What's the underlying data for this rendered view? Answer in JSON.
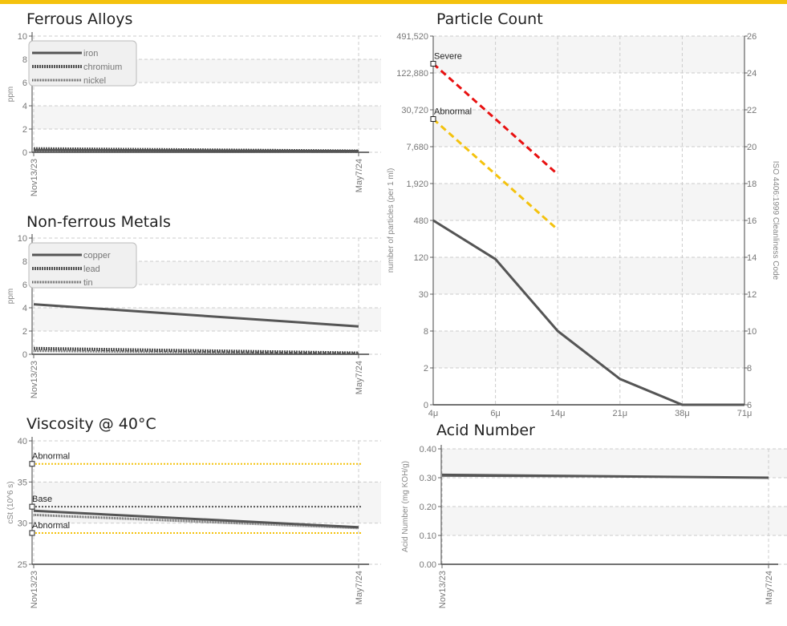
{
  "colors": {
    "accent": "#f4c20d",
    "series": "#555555",
    "severe": "#e81010",
    "abnormal": "#f4c20d",
    "base": "#555555",
    "band": "#f5f5f5",
    "grid": "#cccccc"
  },
  "titles": {
    "ferrous": "Ferrous Alloys",
    "nonferrous": "Non-ferrous Metals",
    "viscosity": "Viscosity @ 40°C",
    "particle": "Particle Count",
    "acid": "Acid Number"
  },
  "chart_data": [
    {
      "id": "ferrous",
      "type": "line",
      "ylabel": "ppm",
      "ylim": [
        0,
        10
      ],
      "yticks": [
        "0",
        "2",
        "4",
        "6",
        "8",
        "10"
      ],
      "categories": [
        "Nov13/23",
        "May7/24"
      ],
      "legend": "top-left",
      "grid": true,
      "series": [
        {
          "name": "iron",
          "style": "solid",
          "values": [
            0.2,
            0.1
          ]
        },
        {
          "name": "chromium",
          "style": "dense",
          "values": [
            0.3,
            0.1
          ]
        },
        {
          "name": "nickel",
          "style": "dotted",
          "values": [
            0.15,
            0.05
          ]
        }
      ]
    },
    {
      "id": "nonferrous",
      "type": "line",
      "ylabel": "ppm",
      "ylim": [
        0,
        10
      ],
      "yticks": [
        "0",
        "2",
        "4",
        "6",
        "8",
        "10"
      ],
      "categories": [
        "Nov13/23",
        "May7/24"
      ],
      "legend": "top-left",
      "grid": true,
      "series": [
        {
          "name": "copper",
          "style": "solid",
          "values": [
            4.3,
            2.4
          ]
        },
        {
          "name": "lead",
          "style": "dense",
          "values": [
            0.5,
            0.1
          ]
        },
        {
          "name": "tin",
          "style": "dotted",
          "values": [
            0.3,
            0.05
          ]
        }
      ]
    },
    {
      "id": "viscosity",
      "type": "line",
      "ylabel": "cSt (10^6 s)",
      "ylim": [
        25,
        40
      ],
      "yticks": [
        "25",
        "30",
        "35",
        "40"
      ],
      "categories": [
        "Nov13/23",
        "May7/24"
      ],
      "grid": true,
      "series": [
        {
          "style": "solid",
          "values": [
            31.5,
            29.5
          ]
        },
        {
          "style": "dotted",
          "values": [
            31.0,
            29.4
          ]
        }
      ],
      "limits": [
        {
          "label": "Abnormal",
          "value": 37.2,
          "kind": "abnormal"
        },
        {
          "label": "Base",
          "value": 32.0,
          "kind": "base"
        },
        {
          "label": "Abnormal",
          "value": 28.8,
          "kind": "abnormal"
        }
      ]
    },
    {
      "id": "particle",
      "type": "line",
      "ylabel": "number of particles (per 1 ml)",
      "y2label": "ISO 4406:1999 Cleanliness Code",
      "yticks": [
        "0",
        "2",
        "8",
        "30",
        "120",
        "480",
        "1,920",
        "7,680",
        "30,720",
        "122,880",
        "491,520"
      ],
      "y2ticks": [
        "6",
        "8",
        "10",
        "12",
        "14",
        "16",
        "18",
        "20",
        "22",
        "24",
        "26"
      ],
      "y2lim": [
        6,
        26
      ],
      "categories": [
        "4μ",
        "6μ",
        "14μ",
        "21μ",
        "38μ",
        "71μ"
      ],
      "grid": true,
      "series": [
        {
          "style": "solid",
          "code_values": [
            16.0,
            13.9,
            10.0,
            7.4,
            6.0,
            6.0
          ]
        }
      ],
      "limits": [
        {
          "label": "Severe",
          "kind": "severe",
          "points": [
            [
              "4μ",
              24.5
            ],
            [
              "14μ",
              18.5
            ]
          ]
        },
        {
          "label": "Abnormal",
          "kind": "abnormal",
          "points": [
            [
              "4μ",
              21.5
            ],
            [
              "14μ",
              15.5
            ]
          ]
        }
      ]
    },
    {
      "id": "acid",
      "type": "line",
      "ylabel": "Acid Number (mg KOH/g)",
      "ylim": [
        0,
        0.4
      ],
      "yticks": [
        "0.00",
        "0.10",
        "0.20",
        "0.30",
        "0.40"
      ],
      "categories": [
        "Nov13/23",
        "May7/24"
      ],
      "grid": true,
      "series": [
        {
          "style": "solid",
          "values": [
            0.31,
            0.3
          ]
        },
        {
          "style": "thin",
          "values": [
            0.305,
            0.3
          ]
        }
      ]
    }
  ]
}
